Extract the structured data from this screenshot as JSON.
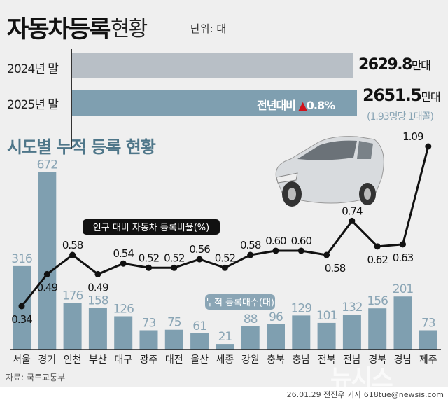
{
  "header": {
    "title": "자동차등록",
    "title2": "현황",
    "unit": "단위: 대"
  },
  "summary": {
    "rows": [
      {
        "label": "2024년 말",
        "value": "2629.8",
        "unit": "만대",
        "fill": 2629.8
      },
      {
        "label": "2025년 말",
        "value": "2651.5",
        "unit": "만대",
        "fill": 2651.5
      }
    ],
    "yoy_label": "전년대비",
    "yoy_value": "0.8%",
    "note": "(1.93명당 1대꼴)"
  },
  "colors": {
    "bar": "#7f9fb0",
    "bar_2024": "#b8bfc6",
    "label": "#8aa5b5",
    "line": "#111111",
    "up_arrow": "#d0121b"
  },
  "chart_data": {
    "type": "bar+line",
    "title": "시도별 누적 등록 현황",
    "categories": [
      "서울",
      "경기",
      "인천",
      "부산",
      "대구",
      "광주",
      "대전",
      "울산",
      "세종",
      "강원",
      "충북",
      "충남",
      "전북",
      "전남",
      "경북",
      "경남",
      "제주"
    ],
    "series": [
      {
        "name": "누적 등록대수(대)",
        "type": "bar",
        "values": [
          316,
          672,
          176,
          158,
          126,
          73,
          75,
          61,
          21,
          88,
          96,
          129,
          101,
          132,
          156,
          201,
          73
        ]
      },
      {
        "name": "인구 대비 자동차 등록비율(%)",
        "type": "line",
        "values": [
          0.34,
          0.49,
          0.58,
          0.49,
          0.54,
          0.52,
          0.52,
          0.56,
          0.52,
          0.58,
          0.6,
          0.6,
          0.58,
          0.74,
          0.62,
          0.63,
          1.09
        ]
      }
    ],
    "line_label_pos": [
      "below",
      "below",
      "above",
      "below",
      "above",
      "above",
      "above",
      "above",
      "above",
      "above",
      "above",
      "above",
      "below",
      "above",
      "below",
      "below",
      "above"
    ],
    "grid": false
  },
  "footer": {
    "source": "자료: 국토교통부",
    "credit": "26.01.29 전진우 기자 618tue@newsis.com",
    "watermark": "뉴시스"
  }
}
